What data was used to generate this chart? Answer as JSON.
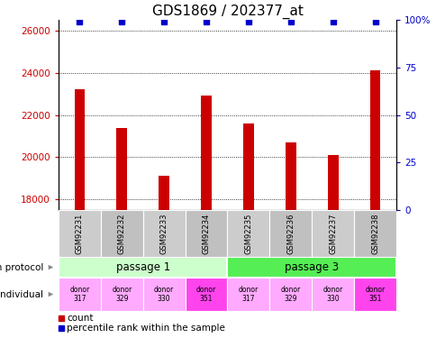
{
  "title": "GDS1869 / 202377_at",
  "samples": [
    "GSM92231",
    "GSM92232",
    "GSM92233",
    "GSM92234",
    "GSM92235",
    "GSM92236",
    "GSM92237",
    "GSM92238"
  ],
  "counts": [
    23200,
    21400,
    19100,
    22900,
    21600,
    20700,
    20100,
    24100
  ],
  "percentiles": [
    99,
    99,
    99,
    99,
    99,
    99,
    99,
    99
  ],
  "ylim_left": [
    17500,
    26500
  ],
  "ylim_right": [
    0,
    100
  ],
  "yticks_left": [
    18000,
    20000,
    22000,
    24000,
    26000
  ],
  "yticks_right": [
    0,
    25,
    50,
    75,
    100
  ],
  "bar_color": "#cc0000",
  "dot_color": "#0000cc",
  "passage_colors": [
    "#ccffcc",
    "#55ee55"
  ],
  "passage_labels": [
    "passage 1",
    "passage 3"
  ],
  "donor_labels": [
    "donor\n317",
    "donor\n329",
    "donor\n330",
    "donor\n351",
    "donor\n317",
    "donor\n329",
    "donor\n330",
    "donor\n351"
  ],
  "donor_colors": [
    "#ffaaff",
    "#ffaaff",
    "#ffaaff",
    "#ff44ee",
    "#ffaaff",
    "#ffaaff",
    "#ffaaff",
    "#ff44ee"
  ],
  "title_fontsize": 11,
  "axis_label_color_left": "#cc0000",
  "axis_label_color_right": "#0000cc",
  "sample_box_colors": [
    "#cccccc",
    "#bbbbbb",
    "#cccccc",
    "#bbbbbb",
    "#cccccc",
    "#bbbbbb",
    "#cccccc",
    "#bbbbbb"
  ]
}
